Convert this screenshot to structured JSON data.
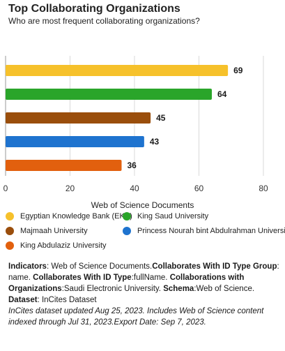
{
  "header": {
    "title": "Top Collaborating Organizations",
    "subtitle": "Who are most frequent collaborating organizations?"
  },
  "chart_data": {
    "type": "bar",
    "orientation": "horizontal",
    "categories": [
      "Egyptian Knowledge Bank (EKB)",
      "King Saud University",
      "Majmaah University",
      "Princess Nourah bint Abdulrahman University",
      "King Abdulaziz University"
    ],
    "values": [
      69,
      64,
      45,
      43,
      36
    ],
    "colors": [
      "#f6c12b",
      "#2aa52a",
      "#9a4e0c",
      "#1e73cf",
      "#e2600e"
    ],
    "xlabel": "Web of Science Documents",
    "xlim": [
      0,
      80
    ],
    "xticks": [
      0,
      20,
      40,
      60,
      80
    ],
    "grid": true,
    "legend_placement": "bottom"
  },
  "footer": {
    "lines": [
      [
        {
          "b": true,
          "t": "Indicators"
        },
        {
          "b": false,
          "t": ": Web of Science Documents."
        },
        {
          "b": true,
          "t": "Collaborates With ID Type Group"
        },
        {
          "b": false,
          "t": ":"
        }
      ],
      [
        {
          "b": false,
          "t": "name. "
        },
        {
          "b": true,
          "t": "Collaborates With ID Type"
        },
        {
          "b": false,
          "t": ":fullName. "
        },
        {
          "b": true,
          "t": "Collaborations with"
        }
      ],
      [
        {
          "b": true,
          "t": "Organizations"
        },
        {
          "b": false,
          "t": ":Saudi Electronic University. "
        },
        {
          "b": true,
          "t": "Schema"
        },
        {
          "b": false,
          "t": ":Web of Science."
        }
      ],
      [
        {
          "b": true,
          "t": "Dataset"
        },
        {
          "b": false,
          "t": ": InCites Dataset"
        }
      ]
    ],
    "note_lines": [
      "InCites dataset updated Aug 25, 2023. Includes Web of Science content",
      "indexed through Jul 31, 2023.Export Date: Sep 7, 2023."
    ]
  }
}
